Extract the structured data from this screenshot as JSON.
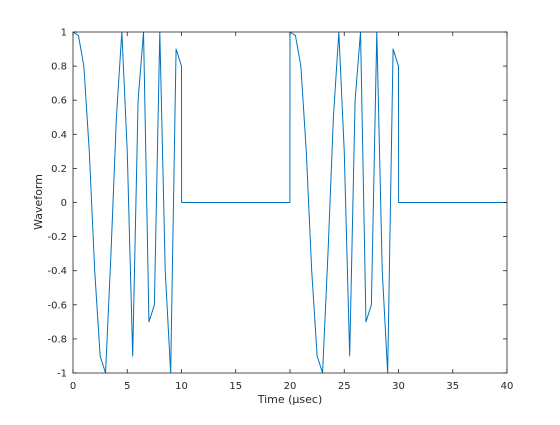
{
  "chart_data": {
    "type": "line",
    "title": "",
    "xlabel": "Time (μsec)",
    "ylabel": "Waveform",
    "xlim": [
      0,
      40
    ],
    "ylim": [
      -1,
      1
    ],
    "grid": false,
    "legend": "none",
    "x_ticks": [
      "0",
      "5",
      "10",
      "15",
      "20",
      "25",
      "30",
      "35",
      "40"
    ],
    "y_ticks": [
      "-1",
      "-0.8",
      "-0.6",
      "-0.4",
      "-0.2",
      "0",
      "0.2",
      "0.4",
      "0.6",
      "0.8",
      "1"
    ],
    "series": [
      {
        "name": "",
        "color": "#0072BD",
        "x": [
          0,
          0.5,
          1,
          1.5,
          2,
          2.5,
          3,
          3.5,
          4,
          4.5,
          5,
          5.5,
          6,
          6.5,
          7,
          7.5,
          8,
          8.5,
          9,
          9.5,
          10,
          10.01,
          19.99,
          20,
          20.5,
          21,
          21.5,
          22,
          22.5,
          23,
          23.5,
          24,
          24.5,
          25,
          25.5,
          26,
          26.5,
          27,
          27.5,
          28,
          28.5,
          29,
          29.5,
          30,
          30.01,
          40
        ],
        "y": [
          1,
          0.98,
          0.8,
          0.3,
          -0.4,
          -0.9,
          -1,
          -0.3,
          0.5,
          1,
          0.3,
          -0.9,
          0.6,
          1,
          -0.7,
          -0.6,
          1,
          -0.4,
          -1,
          0.9,
          0.8,
          0,
          0,
          1,
          0.98,
          0.8,
          0.3,
          -0.4,
          -0.9,
          -1,
          -0.3,
          0.5,
          1,
          0.3,
          -0.9,
          0.6,
          1,
          -0.7,
          -0.6,
          1,
          -0.4,
          -1,
          0.9,
          0.8,
          0,
          0
        ]
      }
    ]
  }
}
